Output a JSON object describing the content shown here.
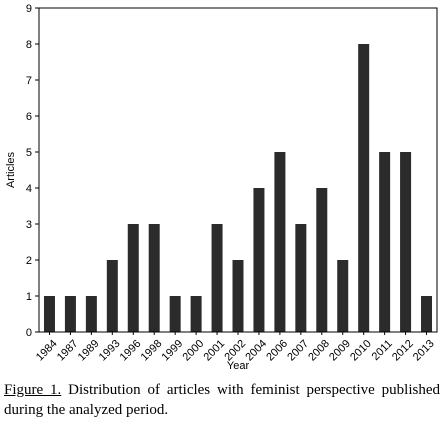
{
  "chart_data": {
    "type": "bar",
    "categories": [
      "1984",
      "1987",
      "1989",
      "1993",
      "1996",
      "1998",
      "1999",
      "2000",
      "2001",
      "2002",
      "2004",
      "2006",
      "2007",
      "2008",
      "2009",
      "2010",
      "2011",
      "2012",
      "2013"
    ],
    "values": [
      1,
      1,
      1,
      2,
      3,
      3,
      1,
      1,
      3,
      2,
      4,
      5,
      3,
      4,
      2,
      8,
      5,
      5,
      1
    ],
    "xlabel": "Year",
    "ylabel": "Articles",
    "ylim": [
      0,
      9
    ],
    "yticks": [
      0,
      1,
      2,
      3,
      4,
      5,
      6,
      7,
      8,
      9
    ],
    "grid": false,
    "legend": "none",
    "bar_color": "#2b2b2b"
  },
  "caption": {
    "label": "Figure 1.",
    "text": "Distribution of articles with feminist perspective published during the analyzed period."
  }
}
